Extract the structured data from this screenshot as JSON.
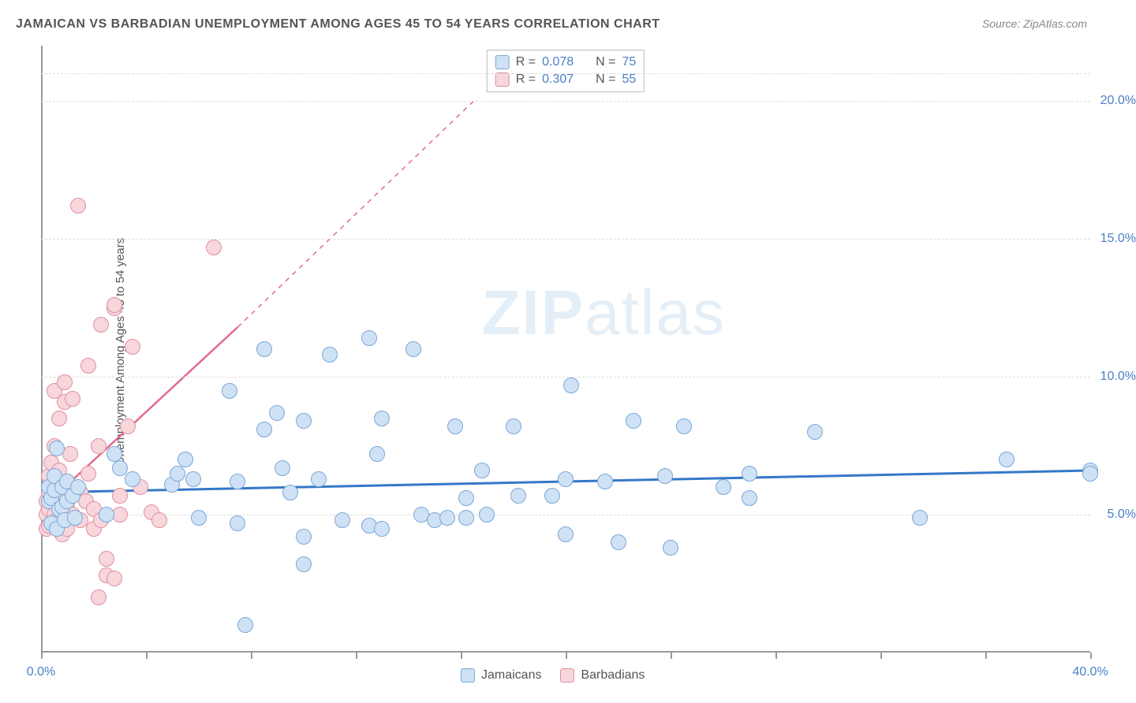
{
  "title": "JAMAICAN VS BARBADIAN UNEMPLOYMENT AMONG AGES 45 TO 54 YEARS CORRELATION CHART",
  "source_label": "Source: ZipAtlas.com",
  "ylabel": "Unemployment Among Ages 45 to 54 years",
  "watermark_bold": "ZIP",
  "watermark_rest": "atlas",
  "watermark_color": "#6da3d8",
  "chart": {
    "type": "scatter",
    "xlim": [
      0,
      40
    ],
    "ylim": [
      0,
      22
    ],
    "x_ticks": [
      0,
      4,
      8,
      12,
      16,
      20,
      24,
      28,
      32,
      36,
      40
    ],
    "x_tick_labels": {
      "0": "0.0%",
      "40": "40.0%"
    },
    "x_tick_label_color": "#4a7fc8",
    "y_ticks": [
      5,
      10,
      15,
      20
    ],
    "y_tick_labels": {
      "5": "5.0%",
      "10": "10.0%",
      "15": "15.0%",
      "20": "20.0%"
    },
    "y_tick_label_color": "#4a7fc8",
    "grid_color": "#dddddd",
    "grid_dashed": true,
    "background_color": "#ffffff",
    "axis_color": "#999999",
    "marker_radius": 10,
    "marker_border_width": 1.5,
    "series": [
      {
        "name": "Jamaicans",
        "fill_color": "#cfe1f5",
        "border_color": "#7aa8d6",
        "line_color": "#3478c8",
        "R": "0.078",
        "N": "75",
        "trend": {
          "x1": 0,
          "y1": 5.8,
          "x2": 40,
          "y2": 6.6,
          "dashed": false,
          "width": 3
        },
        "points": [
          [
            0.3,
            5.5
          ],
          [
            0.3,
            6.0
          ],
          [
            0.4,
            4.7
          ],
          [
            0.4,
            5.6
          ],
          [
            0.5,
            5.9
          ],
          [
            0.5,
            6.4
          ],
          [
            0.6,
            4.5
          ],
          [
            0.6,
            7.4
          ],
          [
            0.7,
            5.2
          ],
          [
            0.8,
            6.0
          ],
          [
            0.8,
            5.3
          ],
          [
            0.9,
            4.8
          ],
          [
            1.0,
            5.5
          ],
          [
            1.0,
            6.2
          ],
          [
            1.2,
            5.7
          ],
          [
            1.3,
            4.9
          ],
          [
            1.4,
            6.0
          ],
          [
            2.5,
            5.0
          ],
          [
            2.8,
            7.2
          ],
          [
            3.0,
            6.7
          ],
          [
            3.5,
            6.3
          ],
          [
            5.0,
            6.1
          ],
          [
            5.2,
            6.5
          ],
          [
            5.5,
            7.0
          ],
          [
            5.8,
            6.3
          ],
          [
            6.0,
            4.9
          ],
          [
            7.2,
            9.5
          ],
          [
            7.5,
            6.2
          ],
          [
            7.5,
            4.7
          ],
          [
            7.8,
            1.0
          ],
          [
            8.5,
            8.1
          ],
          [
            8.5,
            11.0
          ],
          [
            9.0,
            8.7
          ],
          [
            9.2,
            6.7
          ],
          [
            9.5,
            5.8
          ],
          [
            10.0,
            4.2
          ],
          [
            10.0,
            8.4
          ],
          [
            10.0,
            3.2
          ],
          [
            10.6,
            6.3
          ],
          [
            11.0,
            10.8
          ],
          [
            11.5,
            4.8
          ],
          [
            12.5,
            11.4
          ],
          [
            12.5,
            4.6
          ],
          [
            12.8,
            7.2
          ],
          [
            13.0,
            8.5
          ],
          [
            13.0,
            4.5
          ],
          [
            14.2,
            11.0
          ],
          [
            14.5,
            5.0
          ],
          [
            15.0,
            4.8
          ],
          [
            15.5,
            4.9
          ],
          [
            15.8,
            8.2
          ],
          [
            16.2,
            5.6
          ],
          [
            16.2,
            4.9
          ],
          [
            16.8,
            6.6
          ],
          [
            17.0,
            5.0
          ],
          [
            18.0,
            8.2
          ],
          [
            18.2,
            5.7
          ],
          [
            19.5,
            5.7
          ],
          [
            20.0,
            4.3
          ],
          [
            20.0,
            6.3
          ],
          [
            20.2,
            9.7
          ],
          [
            21.5,
            6.2
          ],
          [
            22.0,
            4.0
          ],
          [
            22.6,
            8.4
          ],
          [
            23.8,
            6.4
          ],
          [
            24.0,
            3.8
          ],
          [
            24.5,
            8.2
          ],
          [
            26.0,
            6.0
          ],
          [
            27.0,
            5.6
          ],
          [
            27.0,
            6.5
          ],
          [
            29.5,
            8.0
          ],
          [
            33.5,
            4.9
          ],
          [
            36.8,
            7.0
          ],
          [
            40.0,
            6.6
          ],
          [
            40.0,
            6.5
          ]
        ]
      },
      {
        "name": "Barbadians",
        "fill_color": "#f7d6dc",
        "border_color": "#e08fa0",
        "line_color": "#e36a8a",
        "R": "0.307",
        "N": "55",
        "trend": {
          "x1": 0,
          "y1": 5.2,
          "x2": 7.5,
          "y2": 11.8,
          "dashed_after_x": 7.5,
          "dashed_to_x": 16.5,
          "dashed_to_y": 20.0,
          "width": 2.5
        },
        "points": [
          [
            0.2,
            4.5
          ],
          [
            0.2,
            5.0
          ],
          [
            0.2,
            5.5
          ],
          [
            0.3,
            4.6
          ],
          [
            0.3,
            5.2
          ],
          [
            0.3,
            5.8
          ],
          [
            0.3,
            6.4
          ],
          [
            0.4,
            4.7
          ],
          [
            0.4,
            5.6
          ],
          [
            0.4,
            6.9
          ],
          [
            0.5,
            5.0
          ],
          [
            0.5,
            5.7
          ],
          [
            0.5,
            7.5
          ],
          [
            0.5,
            9.5
          ],
          [
            0.6,
            4.8
          ],
          [
            0.6,
            5.4
          ],
          [
            0.6,
            6.0
          ],
          [
            0.7,
            6.6
          ],
          [
            0.7,
            8.5
          ],
          [
            0.8,
            4.3
          ],
          [
            0.8,
            5.0
          ],
          [
            0.8,
            5.8
          ],
          [
            0.9,
            9.1
          ],
          [
            0.9,
            9.8
          ],
          [
            1.0,
            4.5
          ],
          [
            1.0,
            5.4
          ],
          [
            1.0,
            6.2
          ],
          [
            1.1,
            7.2
          ],
          [
            1.2,
            5.0
          ],
          [
            1.2,
            9.2
          ],
          [
            1.4,
            16.2
          ],
          [
            1.5,
            4.8
          ],
          [
            1.5,
            5.8
          ],
          [
            1.7,
            5.5
          ],
          [
            1.8,
            6.5
          ],
          [
            1.8,
            10.4
          ],
          [
            2.0,
            4.5
          ],
          [
            2.0,
            5.2
          ],
          [
            2.2,
            2.0
          ],
          [
            2.2,
            7.5
          ],
          [
            2.3,
            4.8
          ],
          [
            2.3,
            11.9
          ],
          [
            2.5,
            2.8
          ],
          [
            2.5,
            3.4
          ],
          [
            2.8,
            2.7
          ],
          [
            2.8,
            12.5
          ],
          [
            2.8,
            12.6
          ],
          [
            3.0,
            5.0
          ],
          [
            3.0,
            5.7
          ],
          [
            3.3,
            8.2
          ],
          [
            3.5,
            11.1
          ],
          [
            3.8,
            6.0
          ],
          [
            4.2,
            5.1
          ],
          [
            4.5,
            4.8
          ],
          [
            6.6,
            14.7
          ]
        ]
      }
    ],
    "stats_box": {
      "border_color": "#bbbbbb",
      "label_color": "#555555",
      "value_color": "#4a7fc8",
      "R_label": "R =",
      "N_label": "N ="
    },
    "bottom_legend": {
      "label_color": "#555555"
    }
  }
}
